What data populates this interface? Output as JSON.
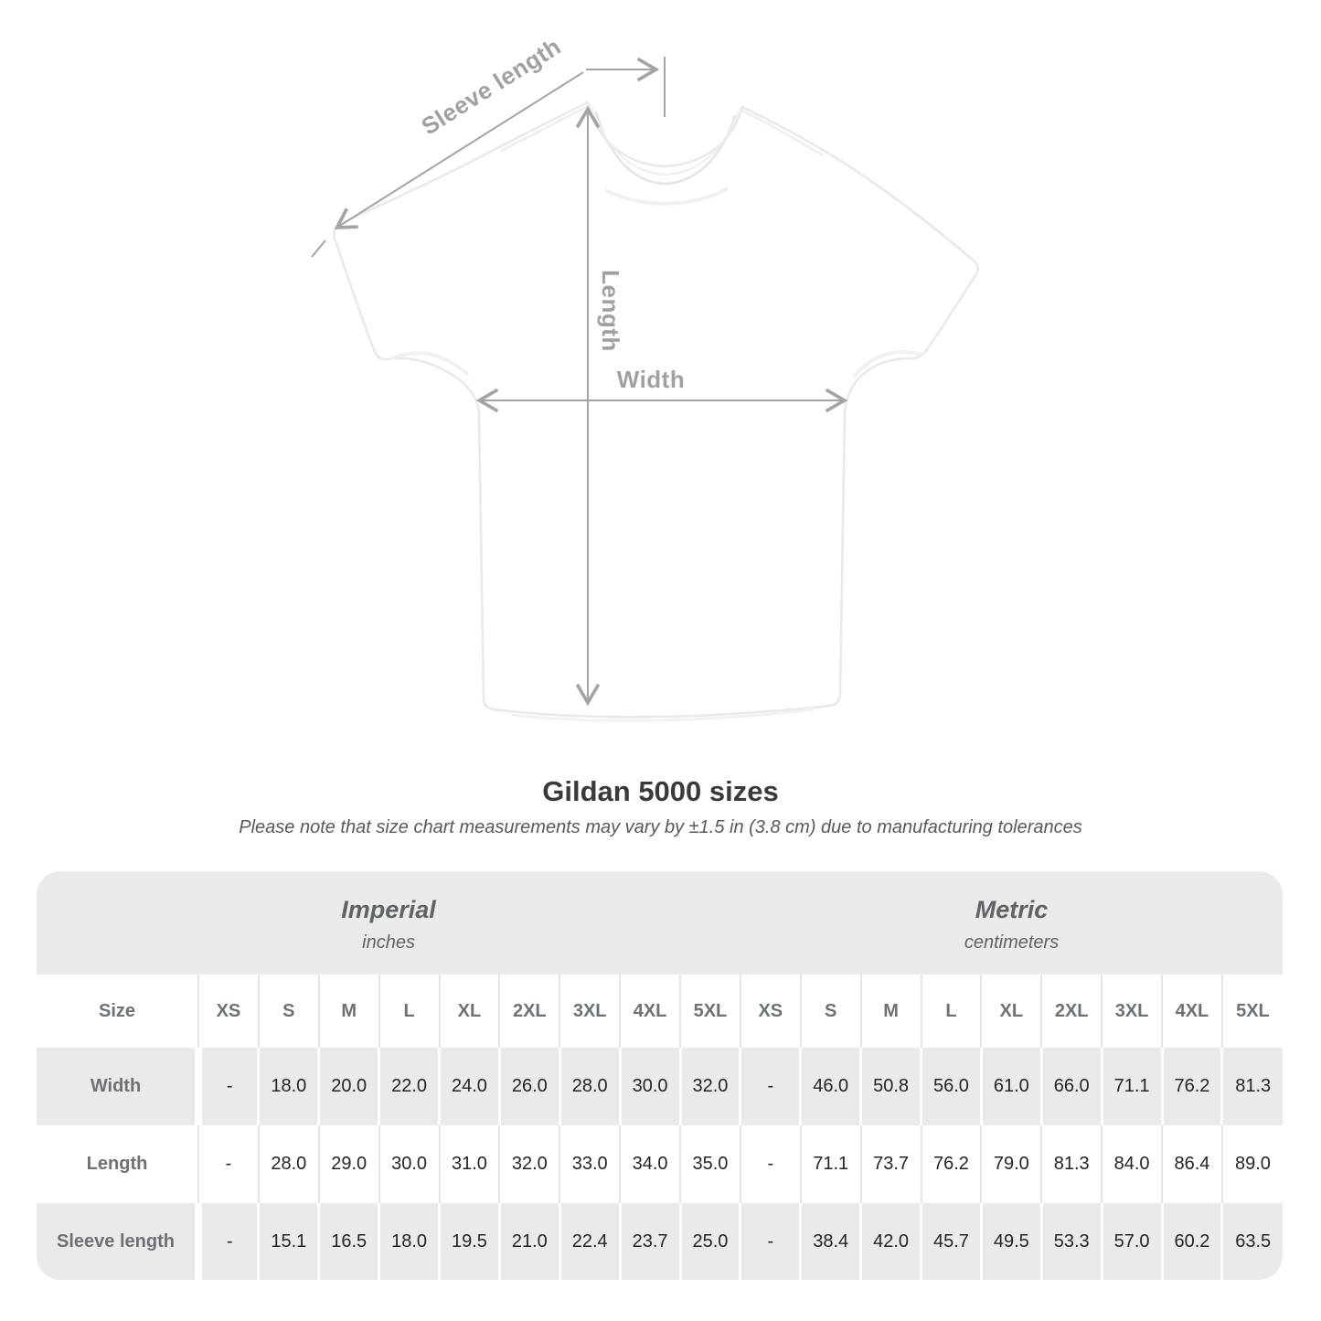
{
  "diagram": {
    "sleeve_label": "Sleeve length",
    "length_label": "Length",
    "width_label": "Width"
  },
  "title": "Gildan 5000 sizes",
  "subtitle": "Please note that size chart measurements may vary by ±1.5 in (3.8 cm) due to manufacturing tolerances",
  "table": {
    "unit_groups": [
      {
        "label": "Imperial",
        "sublabel": "inches"
      },
      {
        "label": "Metric",
        "sublabel": "centimeters"
      }
    ],
    "size_header": "Size",
    "sizes": [
      "XS",
      "S",
      "M",
      "L",
      "XL",
      "2XL",
      "3XL",
      "4XL",
      "5XL"
    ],
    "rows": [
      {
        "label": "Width",
        "imperial": [
          "-",
          "18.0",
          "20.0",
          "22.0",
          "24.0",
          "26.0",
          "28.0",
          "30.0",
          "32.0"
        ],
        "metric": [
          "-",
          "46.0",
          "50.8",
          "56.0",
          "61.0",
          "66.0",
          "71.1",
          "76.2",
          "81.3"
        ]
      },
      {
        "label": "Length",
        "imperial": [
          "-",
          "28.0",
          "29.0",
          "30.0",
          "31.0",
          "32.0",
          "33.0",
          "34.0",
          "35.0"
        ],
        "metric": [
          "-",
          "71.1",
          "73.7",
          "76.2",
          "79.0",
          "81.3",
          "84.0",
          "86.4",
          "89.0"
        ]
      },
      {
        "label": "Sleeve length",
        "imperial": [
          "-",
          "15.1",
          "16.5",
          "18.0",
          "19.5",
          "21.0",
          "22.4",
          "23.7",
          "25.0"
        ],
        "metric": [
          "-",
          "38.4",
          "42.0",
          "45.7",
          "49.5",
          "53.3",
          "57.0",
          "60.2",
          "63.5"
        ]
      }
    ]
  },
  "chart_data": {
    "type": "table",
    "title": "Gildan 5000 sizes",
    "note": "Please note that size chart measurements may vary by ±1.5 in (3.8 cm) due to manufacturing tolerances",
    "columns": [
      "Size",
      "XS",
      "S",
      "M",
      "L",
      "XL",
      "2XL",
      "3XL",
      "4XL",
      "5XL"
    ],
    "imperial_unit": "inches",
    "metric_unit": "centimeters",
    "rows_imperial": [
      [
        "Width",
        null,
        18.0,
        20.0,
        22.0,
        24.0,
        26.0,
        28.0,
        30.0,
        32.0
      ],
      [
        "Length",
        null,
        28.0,
        29.0,
        30.0,
        31.0,
        32.0,
        33.0,
        34.0,
        35.0
      ],
      [
        "Sleeve length",
        null,
        15.1,
        16.5,
        18.0,
        19.5,
        21.0,
        22.4,
        23.7,
        25.0
      ]
    ],
    "rows_metric": [
      [
        "Width",
        null,
        46.0,
        50.8,
        56.0,
        61.0,
        66.0,
        71.1,
        76.2,
        81.3
      ],
      [
        "Length",
        null,
        71.1,
        73.7,
        76.2,
        79.0,
        81.3,
        84.0,
        86.4,
        89.0
      ],
      [
        "Sleeve length",
        null,
        38.4,
        42.0,
        45.7,
        49.5,
        53.3,
        57.0,
        60.2,
        63.5
      ]
    ]
  },
  "colors": {
    "band_gray": "#e9eaea",
    "row_gray": "#e9eaea",
    "separator": "#e4e6e6",
    "dimension_line": "#a1a5a7",
    "dimension_label": "#9da1a4",
    "title_text": "#3a3a3a",
    "number_text": "#222527",
    "header_text": "#6b7174"
  }
}
